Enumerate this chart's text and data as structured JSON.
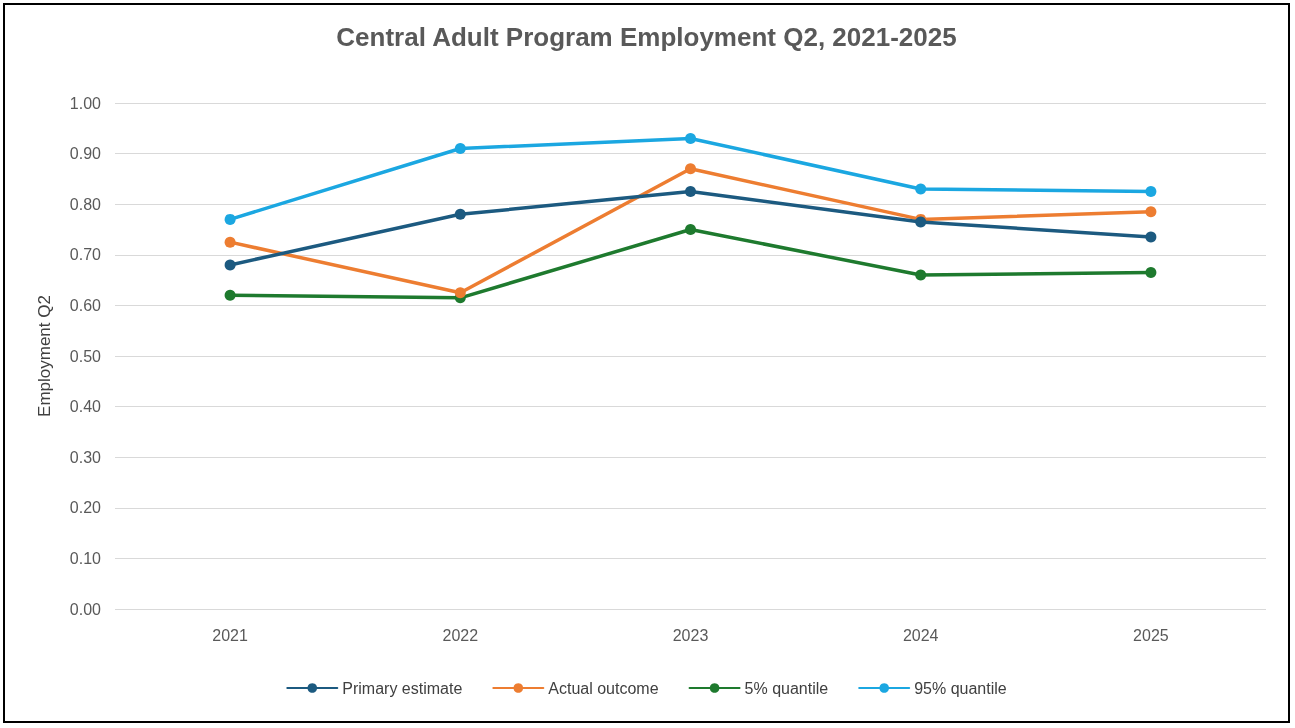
{
  "chart_data": {
    "type": "line",
    "title": "Central Adult Program Employment Q2, 2021-2025",
    "ylabel": "Employment Q2",
    "categories": [
      "2021",
      "2022",
      "2023",
      "2024",
      "2025"
    ],
    "series": [
      {
        "name": "Primary estimate",
        "color": "#1c5a80",
        "values": [
          0.68,
          0.78,
          0.825,
          0.765,
          0.735
        ]
      },
      {
        "name": "Actual outcome",
        "color": "#ed7d31",
        "values": [
          0.725,
          0.625,
          0.87,
          0.77,
          0.785
        ]
      },
      {
        "name": "5% quantile",
        "color": "#1e7a2e",
        "values": [
          0.62,
          0.615,
          0.75,
          0.66,
          0.665
        ]
      },
      {
        "name": "95% quantile",
        "color": "#1ba7e1",
        "values": [
          0.77,
          0.91,
          0.93,
          0.83,
          0.825
        ]
      }
    ],
    "ylim": [
      0,
      1
    ],
    "yticks": [
      {
        "value": 0,
        "label": "0.00"
      },
      {
        "value": 0.1,
        "label": "0.10"
      },
      {
        "value": 0.2,
        "label": "0.20"
      },
      {
        "value": 0.3,
        "label": "0.30"
      },
      {
        "value": 0.4,
        "label": "0.40"
      },
      {
        "value": 0.5,
        "label": "0.50"
      },
      {
        "value": 0.6,
        "label": "0.60"
      },
      {
        "value": 0.7,
        "label": "0.70"
      },
      {
        "value": 0.8,
        "label": "0.80"
      },
      {
        "value": 0.9,
        "label": "0.90"
      },
      {
        "value": 1,
        "label": "1.00"
      }
    ],
    "grid": "y",
    "legend": "bottom",
    "marker": "circle",
    "line_style": "solid"
  }
}
